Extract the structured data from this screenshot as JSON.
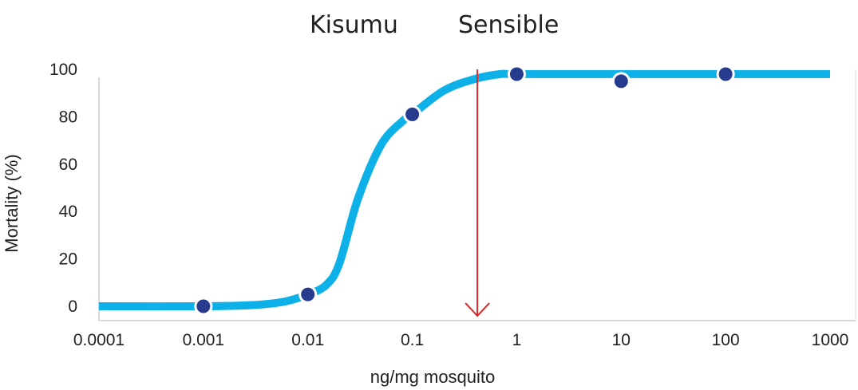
{
  "titles": {
    "left": "Kisumu",
    "right": "Sensible"
  },
  "chart_data": {
    "type": "scatter",
    "xlabel": "ng/mg mosquito",
    "ylabel": "Mortality (%)",
    "x_scale": "log",
    "xlim": [
      0.0001,
      1000
    ],
    "ylim": [
      0,
      100
    ],
    "x_ticks": [
      "0.0001",
      "0.001",
      "0.01",
      "0.1",
      "1",
      "10",
      "100",
      "1000"
    ],
    "y_ticks": [
      "0",
      "20",
      "40",
      "60",
      "80",
      "100"
    ],
    "series": [
      {
        "x": [
          0.001,
          0.01,
          0.1,
          1,
          10,
          100
        ],
        "y": [
          0,
          5,
          81,
          98,
          95,
          98
        ]
      }
    ],
    "fitted_curve": {
      "x": [
        0.0001,
        0.001,
        0.003,
        0.006,
        0.01,
        0.015,
        0.02,
        0.03,
        0.05,
        0.08,
        0.1,
        0.2,
        0.4,
        0.7,
        1,
        10,
        100,
        1000
      ],
      "y": [
        0,
        0,
        0.5,
        2,
        5,
        9,
        18,
        45,
        68,
        78,
        81,
        91,
        96,
        98,
        98,
        98,
        98,
        98
      ]
    },
    "reference_line": {
      "x": 0.42,
      "label": ""
    },
    "colors": {
      "curve": "#0db1e8",
      "points": "#263a8e",
      "arrow": "#d42a2a",
      "axis": "#d9d9d9"
    },
    "grid": false
  }
}
